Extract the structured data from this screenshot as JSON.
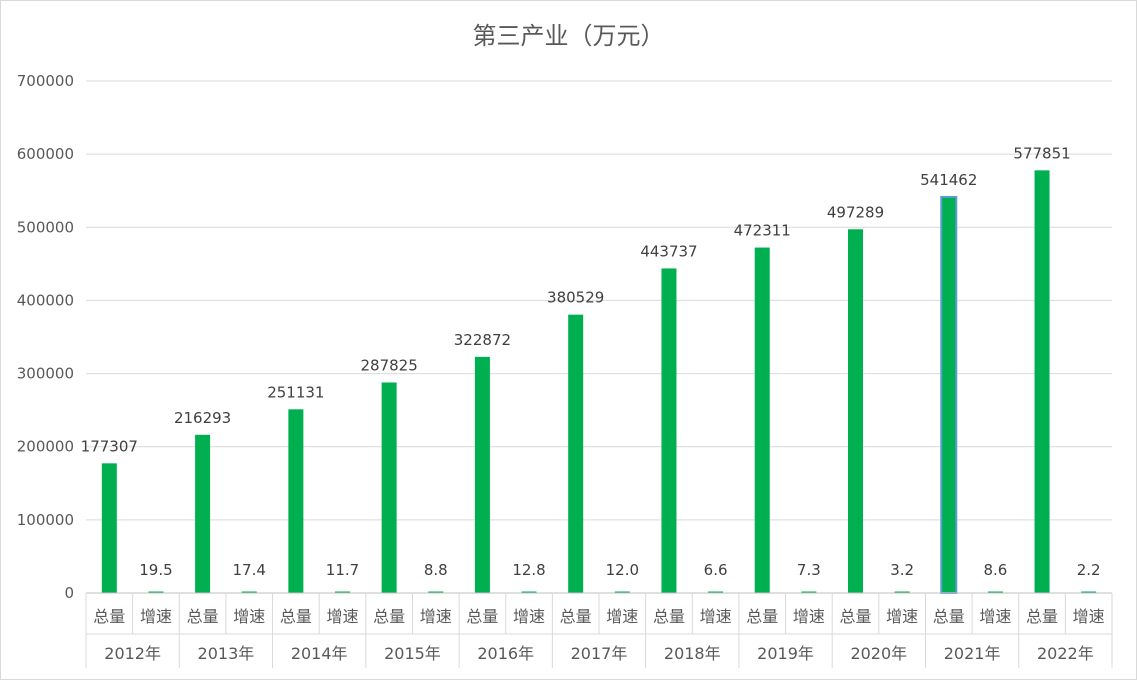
{
  "chart_data": {
    "type": "bar",
    "title": "第三产业（万元）",
    "xlabel": "",
    "ylabel": "",
    "ylim": [
      0,
      700000
    ],
    "yticks": [
      "0",
      "100000",
      "200000",
      "300000",
      "400000",
      "500000",
      "600000",
      "700000"
    ],
    "grid": true,
    "legend": "none",
    "bar_color": "#00b050",
    "highlight_outline_color": "#5b9bd5",
    "highlighted_category": "2021年",
    "sub_categories": [
      "总量",
      "增速"
    ],
    "categories": [
      "2012年",
      "2013年",
      "2014年",
      "2015年",
      "2016年",
      "2017年",
      "2018年",
      "2019年",
      "2020年",
      "2021年",
      "2022年"
    ],
    "series": [
      {
        "values_total": [
          177307,
          216293,
          251131,
          287825,
          322872,
          380529,
          443737,
          472311,
          497289,
          541462,
          577851
        ],
        "labels_total": [
          "177307",
          "216293",
          "251131",
          "287825",
          "322872",
          "380529",
          "443737",
          "472311",
          "497289",
          "541462",
          "577851"
        ],
        "values_growth": [
          19.5,
          17.4,
          11.7,
          8.8,
          12.8,
          12.0,
          6.6,
          7.3,
          3.2,
          8.6,
          2.2
        ],
        "labels_growth": [
          "19.5",
          "17.4",
          "11.7",
          "8.8",
          "12.8",
          "12.0",
          "6.6",
          "7.3",
          "3.2",
          "8.6",
          "2.2"
        ]
      }
    ]
  }
}
